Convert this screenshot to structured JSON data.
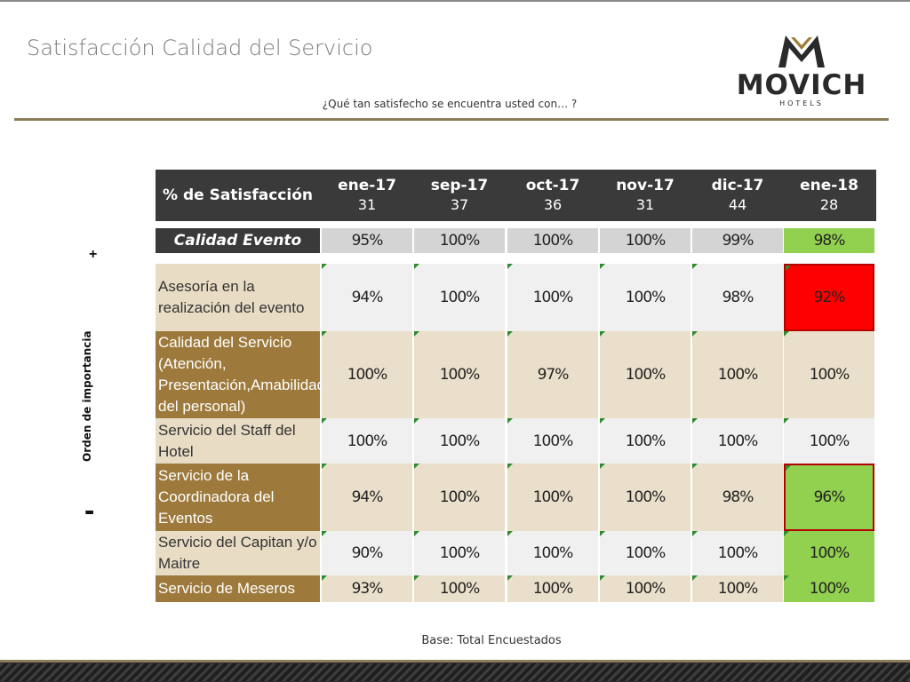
{
  "title": "Satisfacción Calidad del Servicio",
  "question": "¿Qué tan satisfecho se encuentra usted con… ?",
  "logo": {
    "word": "MOVICH",
    "sub": "HOTELS"
  },
  "side": {
    "plus": "+",
    "minus": "-",
    "label": "Orden de importancia"
  },
  "table": {
    "header_label": "% de Satisfacción",
    "columns": [
      {
        "month": "ene-17",
        "n": "31"
      },
      {
        "month": "sep-17",
        "n": "37"
      },
      {
        "month": "oct-17",
        "n": "36"
      },
      {
        "month": "nov-17",
        "n": "31"
      },
      {
        "month": "dic-17",
        "n": "44"
      },
      {
        "month": "ene-18",
        "n": "28"
      }
    ],
    "calidad_evento": {
      "label": "Calidad Evento",
      "values": [
        "95%",
        "100%",
        "100%",
        "100%",
        "99%",
        "98%"
      ]
    },
    "rows": [
      {
        "label": "Asesoría en la realización del evento",
        "values": [
          "94%",
          "100%",
          "100%",
          "100%",
          "98%",
          "92%"
        ]
      },
      {
        "label": "Calidad del Servicio (Atención, Presentación,Amabilidad del personal)",
        "values": [
          "100%",
          "100%",
          "97%",
          "100%",
          "100%",
          "100%"
        ]
      },
      {
        "label": "Servicio del Staff del Hotel",
        "values": [
          "100%",
          "100%",
          "100%",
          "100%",
          "100%",
          "100%"
        ]
      },
      {
        "label": "Servicio de la Coordinadora del Eventos",
        "values": [
          "94%",
          "100%",
          "100%",
          "100%",
          "98%",
          "96%"
        ]
      },
      {
        "label": "Servicio del Capitan y/o Maitre",
        "values": [
          "90%",
          "100%",
          "100%",
          "100%",
          "100%",
          "100%"
        ]
      },
      {
        "label": "Servicio de Meseros",
        "values": [
          "93%",
          "100%",
          "100%",
          "100%",
          "100%",
          "100%"
        ]
      }
    ]
  },
  "colors": {
    "header_bg": "#3a3a3a",
    "label_light": "#e8dcc4",
    "label_dark": "#9d7a3c",
    "highlight_red": "#ff0000",
    "highlight_green": "#92d050",
    "accent_rule": "#8b7d5a"
  },
  "footer": "Base: Total Encuestados"
}
